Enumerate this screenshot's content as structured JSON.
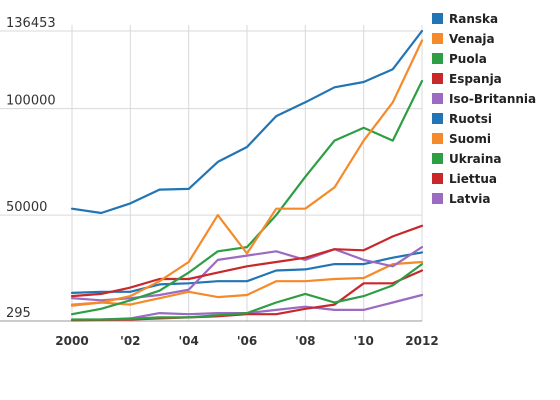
{
  "chart_data": {
    "type": "line",
    "title": "",
    "xlabel": "",
    "ylabel": "",
    "x": [
      2000,
      2001,
      2002,
      2003,
      2004,
      2005,
      2006,
      2007,
      2008,
      2009,
      2010,
      2011,
      2012
    ],
    "x_tick_values": [
      2000,
      2002,
      2004,
      2006,
      2008,
      2010,
      2012
    ],
    "x_tick_labels": [
      "2000",
      "'02",
      "'04",
      "'06",
      "'08",
      "'10",
      "2012"
    ],
    "y_tick_values": [
      295,
      50000,
      100000,
      136453
    ],
    "y_tick_labels": [
      "295",
      "50000",
      "100000",
      "136453"
    ],
    "ylim": [
      295,
      136453
    ],
    "grid": true,
    "legend_position": "right",
    "series": [
      {
        "name": "Ranska",
        "color": "#2275b4",
        "values": [
          53000,
          51000,
          55500,
          62000,
          62300,
          75000,
          82000,
          96500,
          103000,
          110000,
          112500,
          118500,
          136453
        ]
      },
      {
        "name": "Venaja",
        "color": "#f58a2a",
        "values": [
          8000,
          9000,
          12000,
          19000,
          28000,
          50000,
          32000,
          53000,
          53000,
          63000,
          85000,
          103000,
          132000
        ]
      },
      {
        "name": "Puola",
        "color": "#2e9e44",
        "values": [
          3500,
          6000,
          10000,
          14500,
          23000,
          33000,
          35000,
          50000,
          68000,
          85000,
          91000,
          85000,
          113000
        ]
      },
      {
        "name": "Espanja",
        "color": "#c9282b",
        "values": [
          12000,
          13000,
          16000,
          20000,
          20000,
          23000,
          26000,
          28000,
          30000,
          34000,
          33500,
          40000,
          45000
        ]
      },
      {
        "name": "Iso-Britannia",
        "color": "#9a6bc0",
        "values": [
          11000,
          10000,
          11000,
          12500,
          15000,
          29000,
          31000,
          33000,
          29000,
          34000,
          29000,
          26000,
          35000
        ]
      },
      {
        "name": "Ruotsi",
        "color": "#2275b4",
        "values": [
          13500,
          14000,
          14000,
          17500,
          18000,
          19000,
          19000,
          24000,
          24500,
          27000,
          27000,
          30000,
          32500
        ]
      },
      {
        "name": "Suomi",
        "color": "#f58a2a",
        "values": [
          7500,
          9000,
          8000,
          11000,
          14000,
          11500,
          12500,
          19000,
          19000,
          20000,
          20500,
          27000,
          28000
        ]
      },
      {
        "name": "Ukraina",
        "color": "#2e9e44",
        "values": [
          1000,
          1000,
          1300,
          2000,
          2000,
          3000,
          4000,
          9000,
          13000,
          9000,
          12000,
          17000,
          27000
        ]
      },
      {
        "name": "Liettua",
        "color": "#c9282b",
        "values": [
          600,
          800,
          1000,
          1500,
          2000,
          2500,
          3500,
          3500,
          6000,
          8000,
          18000,
          18000,
          24000
        ]
      },
      {
        "name": "Latvia",
        "color": "#9a6bc0",
        "values": [
          800,
          1000,
          1500,
          4000,
          3500,
          4000,
          4000,
          5500,
          7000,
          5500,
          5500,
          9000,
          12500
        ]
      }
    ]
  }
}
